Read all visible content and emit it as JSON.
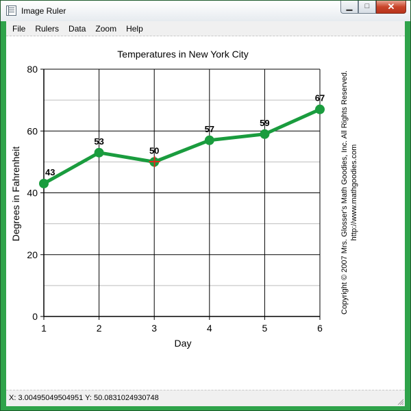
{
  "window": {
    "title": "Image Ruler",
    "icon": "ruler-app-icon"
  },
  "menu": [
    "File",
    "Rulers",
    "Data",
    "Zoom",
    "Help"
  ],
  "status": {
    "coordinates": "X: 3.00495049504951  Y: 50.0831024930748"
  },
  "copyright": {
    "line1": "Copyright © 2007 Mrs. Glosser's Math Goodies, Inc.  All Rights Reserved.",
    "line2": "http://www.mathgoodies.com"
  },
  "colors": {
    "line": "#1a9c3e",
    "marker": "#1a9c3e",
    "cursor": "#e0281e"
  },
  "chart_data": {
    "type": "line",
    "title": "Temperatures in New York City",
    "xlabel": "Day",
    "ylabel": "Degrees in Fahrenheit",
    "x": [
      1,
      2,
      3,
      4,
      5,
      6
    ],
    "values": [
      43,
      53,
      50,
      57,
      59,
      67
    ],
    "data_labels": [
      "43",
      "53",
      "50",
      "57",
      "59",
      "67"
    ],
    "xlim": [
      1,
      6
    ],
    "ylim": [
      0,
      80
    ],
    "x_ticks": [
      "1",
      "2",
      "3",
      "4",
      "5",
      "6"
    ],
    "y_ticks": [
      "0",
      "20",
      "40",
      "60",
      "80"
    ],
    "grid": true,
    "cursor_point": {
      "x": 3.00495049504951,
      "y": 50.0831024930748
    }
  }
}
